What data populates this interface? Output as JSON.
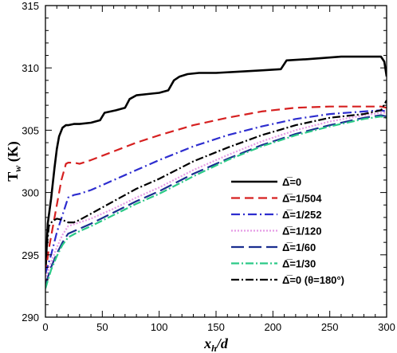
{
  "chart_data": {
    "type": "line",
    "title": "",
    "xlabel": {
      "main": "x",
      "sub": "h",
      "rest": "/d"
    },
    "ylabel": {
      "main": "T",
      "sub": "w",
      "rest": " (K)"
    },
    "xlim": [
      0,
      300
    ],
    "ylim": [
      290,
      315
    ],
    "xticks": [
      0,
      50,
      100,
      150,
      200,
      250,
      300
    ],
    "yticks": [
      290,
      295,
      300,
      305,
      310,
      315
    ],
    "grid": false,
    "legend_position": "lower-right",
    "series": [
      {
        "name": "Δ̅=0",
        "color": "#000000",
        "dash": "solid",
        "x": [
          0,
          2,
          5,
          8,
          10,
          12,
          15,
          18,
          20,
          25,
          30,
          40,
          48,
          52,
          62,
          70,
          74,
          80,
          90,
          100,
          108,
          113,
          118,
          125,
          135,
          150,
          170,
          190,
          207,
          212,
          230,
          260,
          285,
          295,
          298,
          300
        ],
        "y": [
          293.5,
          297.5,
          299.5,
          302,
          303.5,
          304.5,
          305.2,
          305.4,
          305.4,
          305.5,
          305.5,
          305.6,
          305.8,
          306.4,
          306.6,
          306.8,
          307.5,
          307.8,
          307.9,
          308,
          308.2,
          309,
          309.3,
          309.5,
          309.6,
          309.6,
          309.7,
          309.8,
          309.9,
          310.6,
          310.7,
          310.9,
          310.9,
          310.9,
          310.5,
          309.3
        ]
      },
      {
        "name": "Δ̅=1/504",
        "color": "#d62020",
        "dash": "11 6",
        "x": [
          0,
          3,
          6,
          10,
          14,
          18,
          20,
          25,
          30,
          40,
          60,
          80,
          100,
          130,
          160,
          190,
          220,
          250,
          270,
          285,
          295,
          300
        ],
        "y": [
          293.5,
          295.5,
          297,
          299,
          301,
          302.3,
          302.4,
          302.4,
          302.3,
          302.6,
          303.3,
          304,
          304.6,
          305.4,
          306,
          306.5,
          306.8,
          306.9,
          306.9,
          306.9,
          306.9,
          306.8
        ]
      },
      {
        "name": "Δ̅=1/252",
        "color": "#2d2dcf",
        "dash": "11 4 2 4",
        "x": [
          0,
          5,
          10,
          15,
          20,
          25,
          30,
          40,
          60,
          80,
          100,
          130,
          160,
          190,
          220,
          250,
          280,
          295,
          300
        ],
        "y": [
          293.5,
          295,
          296.8,
          298.2,
          299.6,
          299.8,
          299.9,
          300.2,
          301,
          301.8,
          302.6,
          303.7,
          304.6,
          305.3,
          305.9,
          306.3,
          306.5,
          306.6,
          306.5
        ]
      },
      {
        "name": "Δ̅=1/120",
        "color": "#e59be5",
        "dash": "2 2",
        "x": [
          0,
          5,
          10,
          15,
          20,
          30,
          40,
          60,
          80,
          100,
          130,
          160,
          190,
          220,
          250,
          280,
          295,
          300
        ],
        "y": [
          293,
          294.4,
          295.6,
          296.6,
          297.3,
          297.6,
          297.9,
          298.7,
          299.6,
          300.4,
          301.8,
          303,
          304.1,
          305,
          305.7,
          306.2,
          306.4,
          306.4
        ]
      },
      {
        "name": "Δ̅=1/60",
        "color": "#1a2e8f",
        "dash": "16 6",
        "x": [
          0,
          5,
          10,
          15,
          20,
          30,
          40,
          60,
          80,
          100,
          130,
          160,
          190,
          220,
          250,
          280,
          295,
          300
        ],
        "y": [
          292.6,
          294,
          295.1,
          296,
          296.7,
          297.1,
          297.5,
          298.4,
          299.3,
          300.1,
          301.5,
          302.7,
          303.8,
          304.7,
          305.4,
          306,
          306.2,
          306.1
        ]
      },
      {
        "name": "Δ̅=1/30",
        "color": "#2bc987",
        "dash": "10 3 2 3",
        "x": [
          0,
          5,
          10,
          15,
          20,
          30,
          40,
          60,
          80,
          100,
          130,
          160,
          190,
          220,
          250,
          280,
          295,
          300
        ],
        "y": [
          292.3,
          293.8,
          294.9,
          295.8,
          296.4,
          296.9,
          297.3,
          298.2,
          299.1,
          299.9,
          301.3,
          302.6,
          303.7,
          304.6,
          305.3,
          305.9,
          306.1,
          306
        ]
      },
      {
        "name": "Δ̅=0 (θ=180°)",
        "color": "#000000",
        "dash": "10 3 2 3",
        "x": [
          0,
          3,
          6,
          10,
          15,
          20,
          25,
          30,
          40,
          60,
          80,
          100,
          130,
          160,
          190,
          220,
          250,
          280,
          295,
          300
        ],
        "y": [
          294.5,
          297.3,
          297.7,
          297.9,
          297.8,
          297.6,
          297.6,
          297.8,
          298.3,
          299.3,
          300.3,
          301.1,
          302.5,
          303.6,
          304.6,
          305.4,
          306,
          306.3,
          306.6,
          307.4
        ]
      }
    ]
  }
}
